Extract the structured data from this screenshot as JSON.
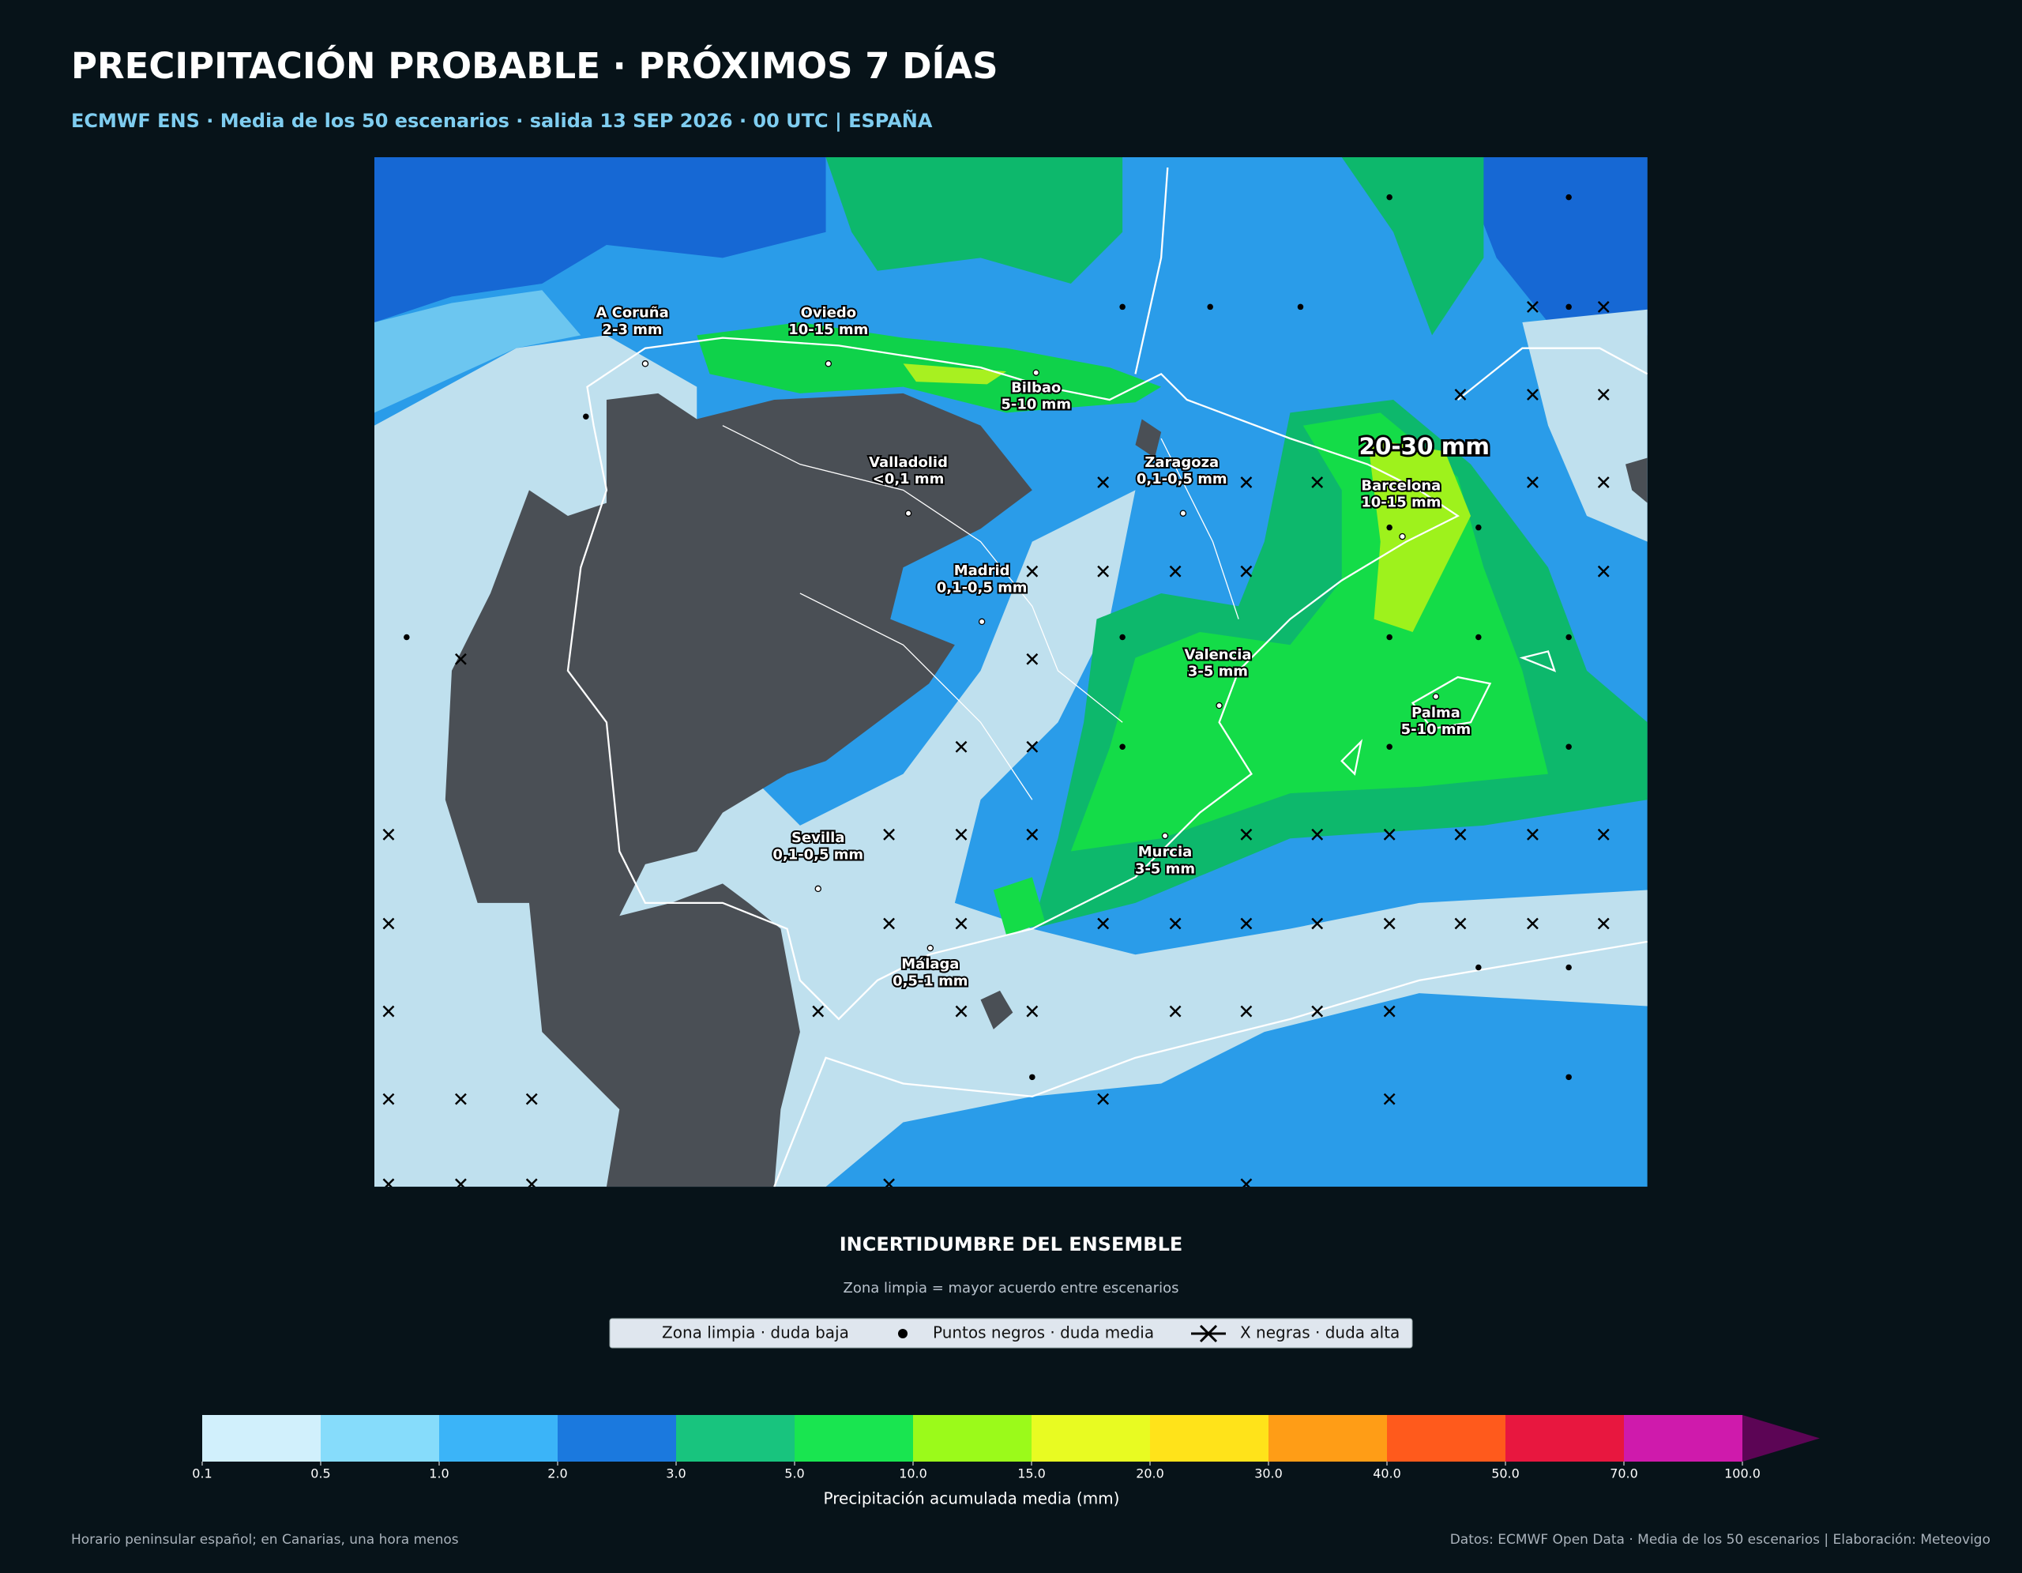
{
  "header": {
    "title": "PRECIPITACIÓN PROBABLE · PRÓXIMOS 7 DÍAS",
    "subtitle": "ECMWF ENS · Media de los 50 escenarios · salida 13 SEP 2026 · 00 UTC | ESPAÑA"
  },
  "map": {
    "cities": [
      {
        "name": "A Coruña",
        "amount": "2-3 mm"
      },
      {
        "name": "Oviedo",
        "amount": "10-15 mm"
      },
      {
        "name": "Bilbao",
        "amount": "5-10 mm"
      },
      {
        "name": "Valladolid",
        "amount": "<0,1 mm"
      },
      {
        "name": "Zaragoza",
        "amount": "0,1-0,5 mm"
      },
      {
        "name": "Barcelona",
        "amount": "10-15 mm"
      },
      {
        "name": "Madrid",
        "amount": "0,1-0,5 mm"
      },
      {
        "name": "Valencia",
        "amount": "3-5 mm"
      },
      {
        "name": "Palma",
        "amount": "5-10 mm"
      },
      {
        "name": "Sevilla",
        "amount": "0,1-0,5 mm"
      },
      {
        "name": "Murcia",
        "amount": "3-5 mm"
      },
      {
        "name": "Málaga",
        "amount": "0,5-1 mm"
      }
    ],
    "highlight": "20-30 mm"
  },
  "uncertainty": {
    "title": "INCERTIDUMBRE DEL ENSEMBLE",
    "subtitle": "Zona limpia = mayor acuerdo entre escenarios",
    "legend": [
      "Zona limpia · duda baja",
      "Puntos negros · duda media",
      "X negras · duda alta"
    ]
  },
  "colorbar": {
    "levels": [
      0.1,
      0.5,
      {
        "value": 1,
        "label": "1.0"
      },
      {
        "value": 2,
        "label": "2.0"
      },
      {
        "value": 3,
        "label": "3.0"
      },
      {
        "value": 5,
        "label": "5.0"
      },
      {
        "value": 10,
        "label": "10.0"
      },
      {
        "value": 15,
        "label": "15.0"
      },
      {
        "value": 20,
        "label": "20.0"
      },
      {
        "value": 30,
        "label": "30.0"
      },
      {
        "value": 40,
        "label": "40.0"
      },
      {
        "value": 50,
        "label": "50.0"
      },
      {
        "value": 70,
        "label": "70.0"
      },
      {
        "value": 100,
        "label": "100.0"
      }
    ],
    "colors": [
      "#d1f0fc",
      "#86dcfb",
      "#3bb4f8",
      "#1b79de",
      "#18c47e",
      "#19e550",
      "#9bfa1a",
      "#e8fb22",
      "#ffe31a",
      "#ff9d16",
      "#ff5a1c",
      "#e8173f",
      "#cf1aac"
    ],
    "over_color": "#5c0555",
    "label": "Precipitación acumulada media (mm)"
  },
  "footer": {
    "left": "Horario peninsular español; en Canarias, una hora menos",
    "right": "Datos: ECMWF Open Data · Media de los 50 escenarios | Elaboración: Meteovigo"
  }
}
